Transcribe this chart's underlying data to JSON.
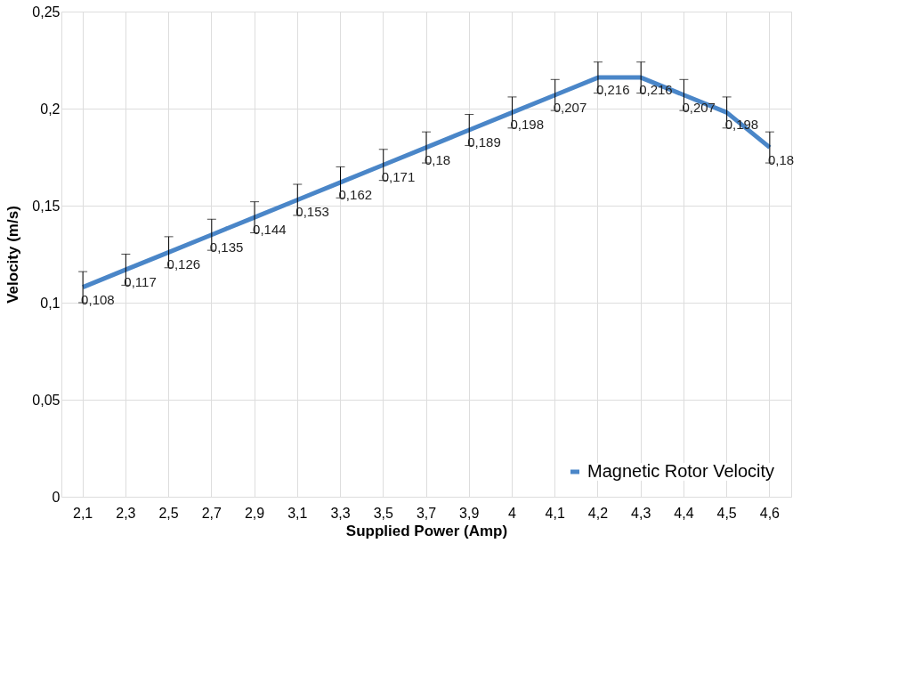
{
  "chart_data": {
    "type": "line",
    "xlabel": "Supplied Power (Amp)",
    "ylabel": "Velocity (m/s)",
    "categories": [
      "2,1",
      "2,3",
      "2,5",
      "2,7",
      "2,9",
      "3,1",
      "3,3",
      "3,5",
      "3,7",
      "3,9",
      "4",
      "4,1",
      "4,2",
      "4,3",
      "4,4",
      "4,5",
      "4,6"
    ],
    "series": [
      {
        "name": "Magnetic Rotor Velocity",
        "color": "#4a86c8",
        "values": [
          0.108,
          0.117,
          0.126,
          0.135,
          0.144,
          0.153,
          0.162,
          0.171,
          0.18,
          0.189,
          0.198,
          0.207,
          0.216,
          0.216,
          0.207,
          0.198,
          0.18
        ],
        "errors": [
          0.008,
          0.008,
          0.008,
          0.008,
          0.008,
          0.008,
          0.008,
          0.008,
          0.008,
          0.008,
          0.008,
          0.008,
          0.008,
          0.008,
          0.008,
          0.008,
          0.008
        ],
        "value_labels": [
          "0,108",
          "0,117",
          "0,126",
          "0,135",
          "0,144",
          "0,153",
          "0,162",
          "0,171",
          "0,18",
          "0,189",
          "0,198",
          "0,207",
          "0,216",
          "0,216",
          "0,207",
          "0,198",
          "0,18"
        ]
      }
    ],
    "ylim": [
      0,
      0.25
    ],
    "yticks": [
      {
        "value": 0,
        "label": "0"
      },
      {
        "value": 0.05,
        "label": "0,05"
      },
      {
        "value": 0.1,
        "label": "0,1"
      },
      {
        "value": 0.15,
        "label": "0,15"
      },
      {
        "value": 0.2,
        "label": "0,2"
      },
      {
        "value": 0.25,
        "label": "0,25"
      }
    ],
    "grid": true,
    "legend": "bottom right",
    "marker": "none",
    "line_style": "solid"
  }
}
